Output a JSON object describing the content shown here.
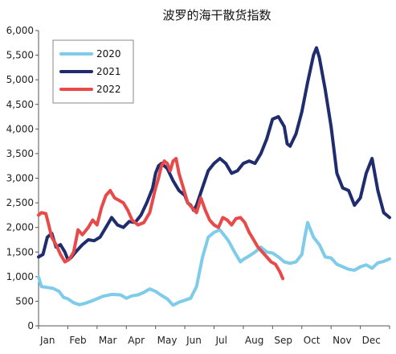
{
  "chart_data": {
    "type": "line",
    "title": "波罗的海干散货指数",
    "xlabel": "",
    "ylabel": "",
    "ylim": [
      0,
      6000
    ],
    "yticks": [
      "0",
      "500",
      "1,000",
      "1,500",
      "2,000",
      "2,500",
      "3,000",
      "3,500",
      "4,000",
      "4,500",
      "5,000",
      "5,500",
      "6,000"
    ],
    "xlim": [
      0,
      12
    ],
    "months": [
      "Jan",
      "Feb",
      "Mar",
      "Apr",
      "May",
      "Jun",
      "Jul",
      "Aug",
      "Sep",
      "Oct",
      "Nov",
      "Dec"
    ],
    "grid": false,
    "legend": "top-left",
    "series": [
      {
        "name": "2020",
        "color": "#7ecbea",
        "x": [
          0.0,
          0.1,
          0.3,
          0.5,
          0.7,
          0.85,
          1.0,
          1.2,
          1.4,
          1.6,
          1.8,
          2.0,
          2.2,
          2.5,
          2.8,
          3.0,
          3.2,
          3.4,
          3.6,
          3.8,
          4.0,
          4.2,
          4.4,
          4.6,
          4.8,
          5.0,
          5.2,
          5.4,
          5.6,
          5.8,
          6.0,
          6.2,
          6.4,
          6.5,
          6.7,
          6.9,
          7.0,
          7.2,
          7.4,
          7.6,
          7.8,
          8.0,
          8.2,
          8.4,
          8.6,
          8.8,
          9.0,
          9.1,
          9.2,
          9.4,
          9.6,
          9.8,
          10.0,
          10.2,
          10.4,
          10.6,
          10.8,
          11.0,
          11.2,
          11.4,
          11.6,
          11.8,
          12.0
        ],
        "y": [
          990,
          800,
          780,
          760,
          700,
          580,
          550,
          470,
          430,
          460,
          500,
          550,
          600,
          640,
          630,
          560,
          610,
          630,
          680,
          750,
          700,
          620,
          550,
          420,
          480,
          520,
          560,
          800,
          1380,
          1800,
          1900,
          1950,
          1800,
          1720,
          1500,
          1300,
          1350,
          1420,
          1500,
          1600,
          1500,
          1480,
          1400,
          1300,
          1270,
          1300,
          1450,
          1800,
          2100,
          1800,
          1650,
          1400,
          1380,
          1250,
          1200,
          1150,
          1130,
          1200,
          1240,
          1170,
          1280,
          1310,
          1360
        ]
      },
      {
        "name": "2021",
        "color": "#1f2d6e",
        "x": [
          0.0,
          0.15,
          0.3,
          0.45,
          0.6,
          0.75,
          0.9,
          1.0,
          1.1,
          1.3,
          1.5,
          1.7,
          1.9,
          2.1,
          2.3,
          2.5,
          2.7,
          2.9,
          3.1,
          3.3,
          3.5,
          3.7,
          3.9,
          4.0,
          4.1,
          4.2,
          4.4,
          4.6,
          4.8,
          5.0,
          5.1,
          5.2,
          5.3,
          5.4,
          5.6,
          5.8,
          6.0,
          6.2,
          6.4,
          6.6,
          6.8,
          7.0,
          7.2,
          7.4,
          7.6,
          7.8,
          7.9,
          8.0,
          8.2,
          8.4,
          8.5,
          8.6,
          8.8,
          9.0,
          9.2,
          9.4,
          9.5,
          9.6,
          9.8,
          10.0,
          10.2,
          10.4,
          10.6,
          10.8,
          11.0,
          11.2,
          11.4,
          11.6,
          11.8,
          12.0
        ],
        "y": [
          1400,
          1450,
          1800,
          1880,
          1600,
          1650,
          1500,
          1350,
          1380,
          1520,
          1650,
          1750,
          1730,
          1800,
          2000,
          2200,
          2050,
          2000,
          2120,
          2100,
          2250,
          2500,
          2800,
          3100,
          3250,
          3300,
          3200,
          2950,
          2750,
          2650,
          2500,
          2450,
          2350,
          2450,
          2800,
          3150,
          3300,
          3400,
          3300,
          3100,
          3150,
          3300,
          3350,
          3300,
          3500,
          3800,
          4000,
          4200,
          4250,
          4050,
          3700,
          3650,
          3900,
          4350,
          4950,
          5500,
          5650,
          5450,
          4800,
          4050,
          3100,
          2800,
          2750,
          2450,
          2600,
          3100,
          3400,
          2750,
          2300,
          2200
        ]
      },
      {
        "name": "2022",
        "color": "#e84a4a",
        "x": [
          0.0,
          0.1,
          0.25,
          0.35,
          0.45,
          0.6,
          0.75,
          0.9,
          1.05,
          1.2,
          1.35,
          1.5,
          1.7,
          1.85,
          2.0,
          2.15,
          2.3,
          2.45,
          2.6,
          2.75,
          2.9,
          3.05,
          3.2,
          3.4,
          3.6,
          3.8,
          4.0,
          4.1,
          4.2,
          4.3,
          4.4,
          4.5,
          4.6,
          4.7,
          4.8,
          4.95,
          5.1,
          5.25,
          5.4,
          5.55,
          5.7,
          5.85,
          6.0,
          6.15,
          6.3,
          6.45,
          6.6,
          6.75,
          6.9,
          7.05,
          7.2,
          7.35,
          7.5,
          7.65,
          7.8,
          7.95,
          8.1,
          8.25,
          8.35
        ],
        "y": [
          2250,
          2300,
          2280,
          2050,
          1800,
          1650,
          1450,
          1300,
          1350,
          1500,
          1950,
          1850,
          2000,
          2150,
          2050,
          2400,
          2650,
          2750,
          2600,
          2550,
          2500,
          2350,
          2150,
          2050,
          2100,
          2300,
          2800,
          3000,
          3250,
          3350,
          3300,
          3150,
          3350,
          3400,
          3100,
          2800,
          2500,
          2400,
          2300,
          2600,
          2350,
          2150,
          2050,
          2000,
          2200,
          2150,
          2050,
          2180,
          2200,
          2100,
          1900,
          1750,
          1600,
          1500,
          1400,
          1300,
          1250,
          1100,
          960
        ]
      }
    ]
  }
}
